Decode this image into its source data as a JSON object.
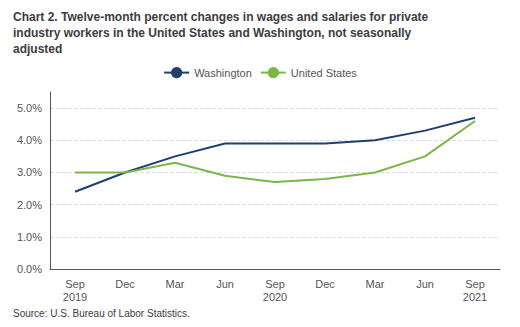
{
  "chart_data": {
    "type": "line",
    "title": "Chart 2. Twelve-month percent changes in wages and salaries for private\nindustry workers in the United States and Washington, not seasonally\nadjusted",
    "source": "Source: U.S. Bureau of Labor Statistics.",
    "categories": [
      "Sep\n2019",
      "Dec",
      "Mar",
      "Jun",
      "Sep\n2020",
      "Dec",
      "Mar",
      "Jun",
      "Sep\n2021"
    ],
    "series": [
      {
        "name": "Washington",
        "color": "#1f3f6e",
        "values": [
          0.024,
          0.03,
          0.035,
          0.039,
          0.039,
          0.039,
          0.04,
          0.043,
          0.047
        ]
      },
      {
        "name": "United States",
        "color": "#7ab648",
        "values": [
          0.03,
          0.03,
          0.033,
          0.029,
          0.027,
          0.028,
          0.03,
          0.035,
          0.046
        ]
      }
    ],
    "ylim": [
      0.0,
      0.055
    ],
    "yticks": [
      {
        "value": 0.0,
        "label": "0.0%"
      },
      {
        "value": 0.01,
        "label": "1.0%"
      },
      {
        "value": 0.02,
        "label": "2.0%"
      },
      {
        "value": 0.03,
        "label": "3.0%"
      },
      {
        "value": 0.04,
        "label": "4.0%"
      },
      {
        "value": 0.05,
        "label": "5.0%"
      }
    ],
    "grid": true,
    "legend": "top"
  }
}
